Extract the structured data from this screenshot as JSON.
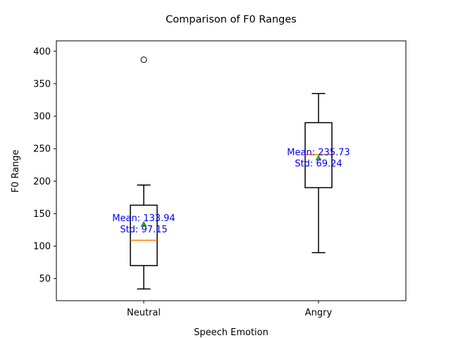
{
  "chart_data": {
    "type": "box",
    "title": "Comparison of F0 Ranges",
    "xlabel": "Speech Emotion",
    "ylabel": "F0 Range",
    "ylim": [
      16,
      416
    ],
    "yticks": [
      50,
      100,
      150,
      200,
      250,
      300,
      350,
      400
    ],
    "grid": false,
    "categories": [
      "Neutral",
      "Angry"
    ],
    "boxes": [
      {
        "category": "Neutral",
        "whisker_low": 34,
        "q1": 70,
        "median": 109,
        "q3": 163,
        "whisker_high": 194,
        "mean": 133.94,
        "outliers": [
          387
        ],
        "annotation": [
          "Mean: 133.94",
          "Std: 97.15"
        ]
      },
      {
        "category": "Angry",
        "whisker_low": 90,
        "q1": 190,
        "median": 241,
        "q3": 290,
        "whisker_high": 335,
        "mean": 235.73,
        "outliers": [],
        "annotation": [
          "Mean: 235.73",
          "Std: 69.24"
        ]
      }
    ],
    "colors": {
      "box": "#000000",
      "median": "#ff7f0e",
      "mean_marker": "#2ca02c",
      "annotation": "#0000ff"
    }
  }
}
